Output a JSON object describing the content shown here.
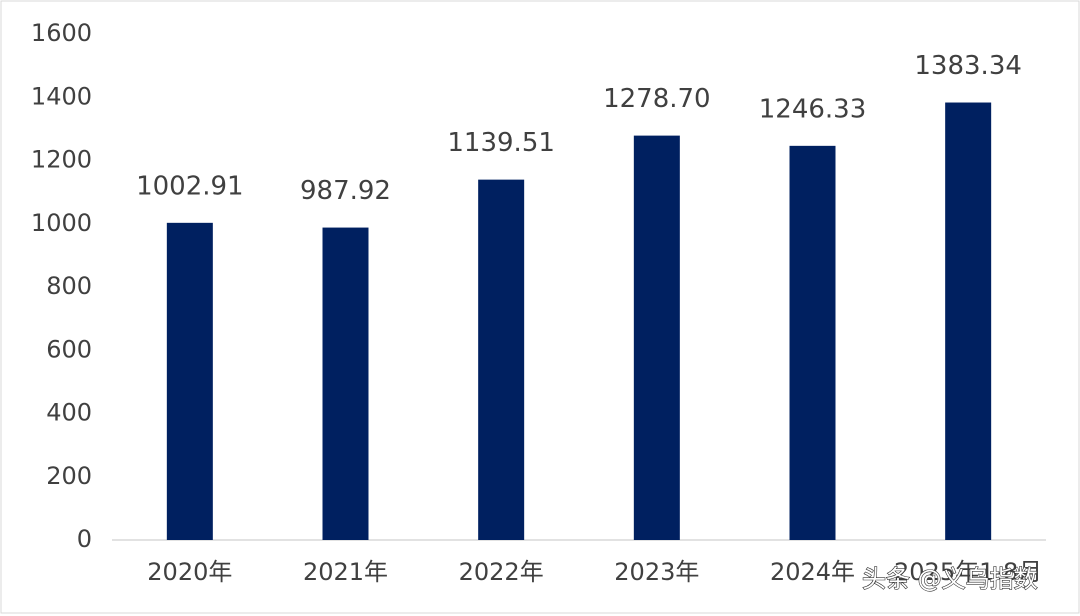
{
  "chart_data": {
    "type": "bar",
    "categories": [
      "2020年",
      "2021年",
      "2022年",
      "2023年",
      "2024年",
      "2025年1-8月"
    ],
    "values": [
      1002.91,
      987.92,
      1139.51,
      1278.7,
      1246.33,
      1383.34
    ],
    "value_labels": [
      "1002.91",
      "987.92",
      "1139.51",
      "1278.70",
      "1246.33",
      "1383.34"
    ],
    "color": "#002060",
    "ylim": [
      0,
      1600
    ],
    "yticks": [
      0,
      200,
      400,
      600,
      800,
      1000,
      1200,
      1400,
      1600
    ],
    "grid": false,
    "watermark": "头条 @义乌指数"
  }
}
